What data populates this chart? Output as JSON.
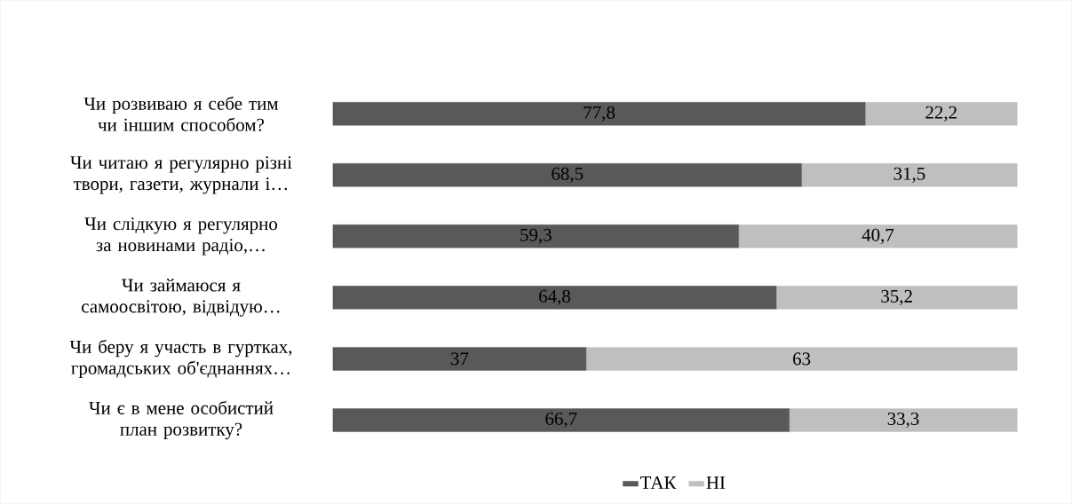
{
  "chart_data": {
    "type": "bar",
    "orientation": "horizontal",
    "stacked": true,
    "legend": "bottom",
    "categories": [
      "Чи розвиваю я себе тим чи іншим способом?",
      "Чи читаю я регулярно різні твори, газети, журнали і…",
      "Чи слідкую я регулярно за новинами радіо,…",
      "Чи займаюся я самоосвітою, відвідую…",
      "Чи беру я участь в гуртках, громадських об'єднаннях…",
      "Чи є в мене особистий план розвитку?"
    ],
    "series": [
      {
        "name": "ТАК",
        "color": "#595959",
        "values": [
          77.8,
          68.5,
          59.3,
          64.8,
          37,
          66.7
        ],
        "value_labels": [
          "77,8",
          "68,5",
          "59,3",
          "64,8",
          "37",
          "66,7"
        ]
      },
      {
        "name": "НІ",
        "color": "#bfbfbf",
        "values": [
          22.2,
          31.5,
          40.7,
          35.2,
          63,
          33.3
        ],
        "value_labels": [
          "22,2",
          "31,5",
          "40,7",
          "35,2",
          "63",
          "33,3"
        ]
      }
    ]
  }
}
